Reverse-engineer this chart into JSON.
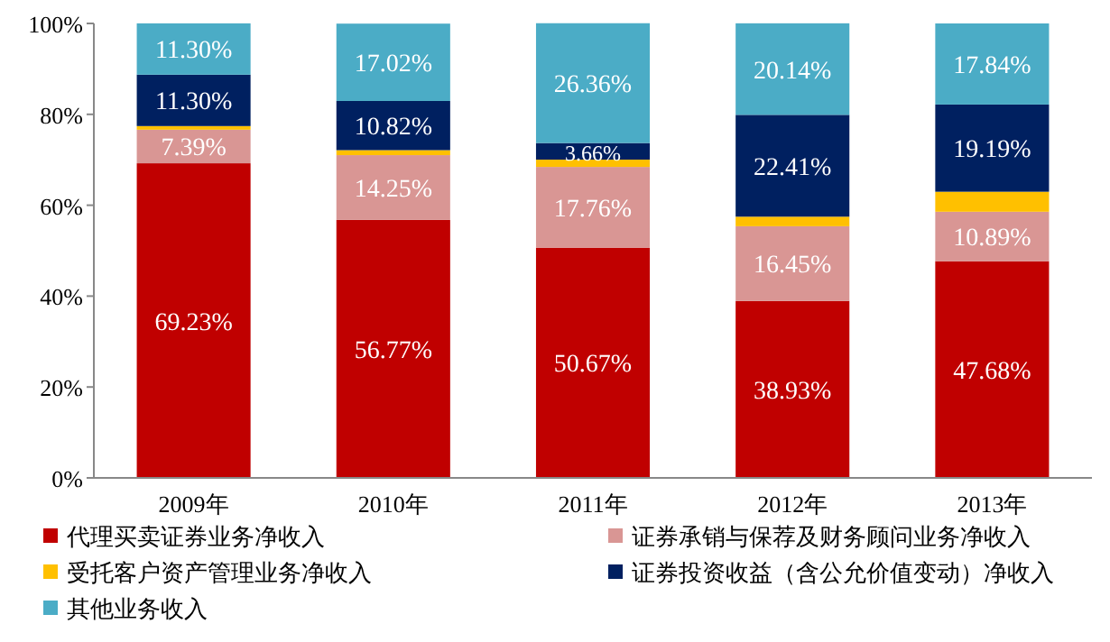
{
  "chart_data": {
    "type": "bar",
    "stacked": true,
    "categories": [
      "2009年",
      "2010年",
      "2011年",
      "2012年",
      "2013年"
    ],
    "ylim": [
      0,
      100
    ],
    "yticks": [
      {
        "value": 0,
        "label": "0%"
      },
      {
        "value": 20,
        "label": "20%"
      },
      {
        "value": 40,
        "label": "40%"
      },
      {
        "value": 60,
        "label": "60%"
      },
      {
        "value": 80,
        "label": "80%"
      },
      {
        "value": 100,
        "label": "100%"
      }
    ],
    "grid": false,
    "legend": "bottom",
    "series": [
      {
        "name": "代理买卖证券业务净收入",
        "color": "#c00000",
        "values": [
          69.23,
          56.77,
          50.67,
          38.93,
          47.68
        ],
        "value_labels": [
          "69.23%",
          "56.77%",
          "50.67%",
          "38.93%",
          "47.68%"
        ]
      },
      {
        "name": "证券承销与保荐及财务顾问业务净收入",
        "color": "#d99694",
        "values": [
          7.39,
          14.25,
          17.76,
          16.45,
          10.89
        ],
        "value_labels": [
          "7.39%",
          "14.25%",
          "17.76%",
          "16.45%",
          "10.89%"
        ]
      },
      {
        "name": "受托客户资产管理业务净收入",
        "color": "#ffc000",
        "values": [
          0.8,
          1.1,
          1.6,
          2.1,
          4.4
        ],
        "value_labels": [
          null,
          null,
          null,
          null,
          null
        ]
      },
      {
        "name": "证券投资收益（含公允价值变动）净收入",
        "color": "#002060",
        "values": [
          11.3,
          10.82,
          3.66,
          22.41,
          19.19
        ],
        "value_labels": [
          "11.30%",
          "10.82%",
          "3.66%",
          "22.41%",
          "19.19%"
        ]
      },
      {
        "name": "其他业务收入",
        "color": "#4bacc6",
        "values": [
          11.3,
          17.02,
          26.36,
          20.14,
          17.84
        ],
        "value_labels": [
          "11.30%",
          "17.02%",
          "26.36%",
          "20.14%",
          "17.84%"
        ]
      }
    ]
  }
}
